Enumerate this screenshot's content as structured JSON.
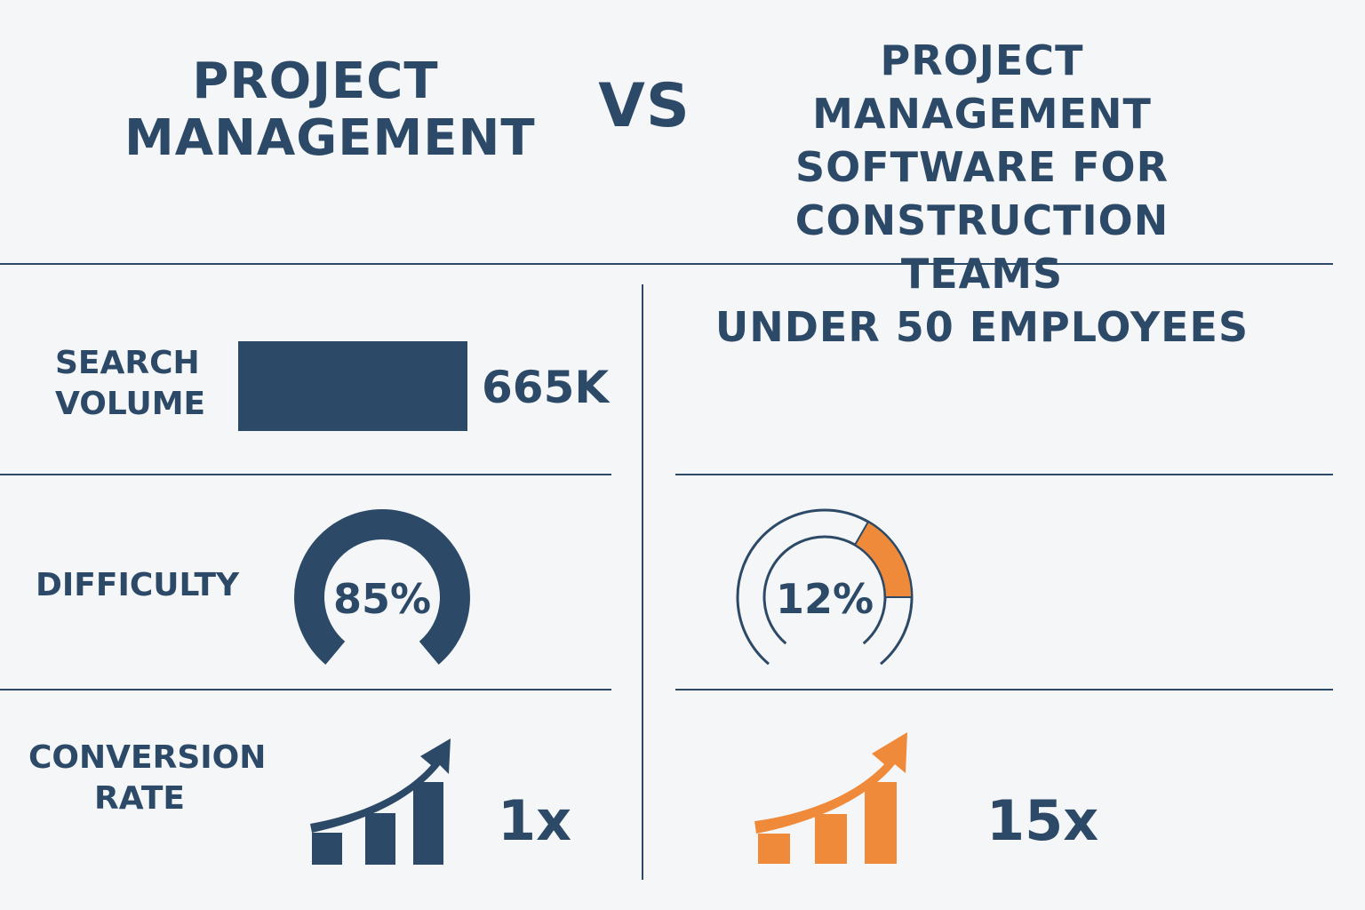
{
  "header": {
    "left_title": [
      "PROJECT",
      "MANAGEMENT"
    ],
    "vs": "VS",
    "right_title": [
      "PROJECT MANAGEMENT",
      "SOFTWARE FOR",
      "CONSTRUCTION TEAMS",
      "UNDER 50 EMPLOYEES"
    ]
  },
  "rows": {
    "search_volume": {
      "label": [
        "SEARCH",
        "VOLUME"
      ],
      "left_value": "665K"
    },
    "difficulty": {
      "label": "DIFFICULTY",
      "left_value": "85%",
      "left_fraction": 0.85,
      "right_value": "12%",
      "right_fraction": 0.12
    },
    "conversion_rate": {
      "label": [
        "CONVERSION",
        "RATE"
      ],
      "left_value": "1x",
      "right_value": "15x"
    }
  },
  "colors": {
    "navy": "#2c4a68",
    "orange": "#ef8a3b",
    "background": "#f5f6f7"
  },
  "icons": {
    "left_chart": "growth-chart-icon",
    "right_chart": "growth-chart-icon"
  }
}
